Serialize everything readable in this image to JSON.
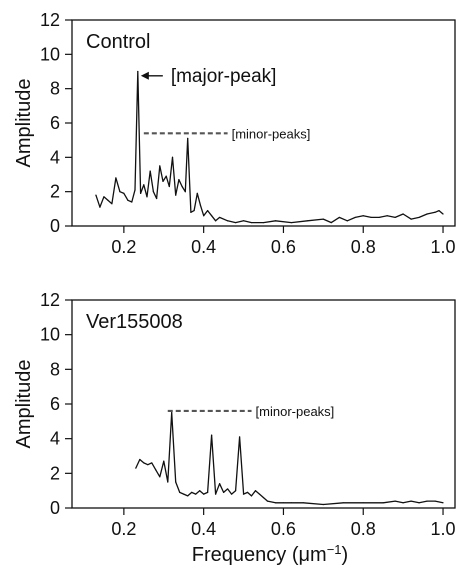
{
  "figure": {
    "xlabel": "Frequency (μm",
    "xlabel_sup": "−1",
    "xlabel_close": ")"
  },
  "chart_data": [
    {
      "type": "line",
      "title": "Control",
      "xlabel": "",
      "ylabel": "Amplitude",
      "xlim": [
        0.07,
        1.03
      ],
      "ylim": [
        0,
        12
      ],
      "x_ticks": [
        0.2,
        0.4,
        0.6,
        0.8,
        1.0
      ],
      "x_tick_labels": [
        "0.2",
        "0.4",
        "0.6",
        "0.8",
        "1.0"
      ],
      "y_ticks": [
        0,
        2,
        4,
        6,
        8,
        10,
        12
      ],
      "y_tick_labels": [
        "0",
        "2",
        "4",
        "6",
        "8",
        "10",
        "12"
      ],
      "series": [
        {
          "x": [
            0.13,
            0.14,
            0.15,
            0.16,
            0.17,
            0.18,
            0.19,
            0.2,
            0.21,
            0.22,
            0.228,
            0.235,
            0.242,
            0.25,
            0.258,
            0.266,
            0.274,
            0.282,
            0.29,
            0.298,
            0.306,
            0.314,
            0.322,
            0.33,
            0.338,
            0.346,
            0.354,
            0.36,
            0.368,
            0.376,
            0.384,
            0.392,
            0.4,
            0.41,
            0.42,
            0.43,
            0.44,
            0.46,
            0.48,
            0.5,
            0.52,
            0.55,
            0.58,
            0.62,
            0.66,
            0.7,
            0.72,
            0.74,
            0.76,
            0.78,
            0.8,
            0.82,
            0.84,
            0.86,
            0.88,
            0.9,
            0.92,
            0.94,
            0.96,
            0.98,
            0.99,
            1.0
          ],
          "y": [
            1.8,
            1.1,
            1.7,
            1.5,
            1.3,
            2.8,
            2.0,
            1.9,
            1.5,
            1.4,
            2.1,
            9.0,
            1.9,
            2.4,
            1.7,
            3.2,
            2.0,
            1.6,
            3.5,
            2.6,
            2.9,
            2.3,
            4.0,
            1.8,
            2.7,
            2.3,
            2.0,
            5.1,
            0.8,
            0.9,
            1.9,
            1.2,
            0.6,
            0.9,
            0.6,
            0.3,
            0.5,
            0.3,
            0.2,
            0.3,
            0.2,
            0.2,
            0.3,
            0.2,
            0.3,
            0.4,
            0.2,
            0.5,
            0.3,
            0.5,
            0.6,
            0.5,
            0.5,
            0.6,
            0.5,
            0.7,
            0.4,
            0.5,
            0.7,
            0.8,
            0.9,
            0.7
          ]
        }
      ],
      "annotations": {
        "major_peak": "[major-peak]",
        "minor_peaks": "[minor-peaks]",
        "major_arrow_x": 0.235,
        "major_arrow_y": 8.75,
        "minor_line_x": [
          0.25,
          0.46
        ],
        "minor_line_y": 5.4
      }
    },
    {
      "type": "line",
      "title": "Ver155008",
      "xlabel": "Frequency (μm−1)",
      "ylabel": "Amplitude",
      "xlim": [
        0.07,
        1.03
      ],
      "ylim": [
        0,
        12
      ],
      "x_ticks": [
        0.2,
        0.4,
        0.6,
        0.8,
        1.0
      ],
      "x_tick_labels": [
        "0.2",
        "0.4",
        "0.6",
        "0.8",
        "1.0"
      ],
      "y_ticks": [
        0,
        2,
        4,
        6,
        8,
        10,
        12
      ],
      "y_tick_labels": [
        "0",
        "2",
        "4",
        "6",
        "8",
        "10",
        "12"
      ],
      "series": [
        {
          "x": [
            0.23,
            0.24,
            0.25,
            0.26,
            0.27,
            0.28,
            0.29,
            0.3,
            0.31,
            0.32,
            0.33,
            0.34,
            0.35,
            0.36,
            0.37,
            0.38,
            0.39,
            0.4,
            0.41,
            0.42,
            0.43,
            0.44,
            0.45,
            0.46,
            0.47,
            0.48,
            0.49,
            0.5,
            0.51,
            0.52,
            0.53,
            0.54,
            0.55,
            0.56,
            0.58,
            0.6,
            0.62,
            0.65,
            0.7,
            0.75,
            0.8,
            0.85,
            0.88,
            0.9,
            0.92,
            0.94,
            0.96,
            0.98,
            1.0
          ],
          "y": [
            2.3,
            2.8,
            2.6,
            2.5,
            2.6,
            2.2,
            1.8,
            2.7,
            1.5,
            5.5,
            1.5,
            0.9,
            0.8,
            0.7,
            0.9,
            0.8,
            1.0,
            0.8,
            0.9,
            4.2,
            0.8,
            1.4,
            0.9,
            1.1,
            0.8,
            1.0,
            4.1,
            0.8,
            0.9,
            0.7,
            1.0,
            0.8,
            0.6,
            0.4,
            0.3,
            0.3,
            0.3,
            0.3,
            0.2,
            0.3,
            0.3,
            0.3,
            0.4,
            0.3,
            0.4,
            0.3,
            0.4,
            0.4,
            0.3
          ]
        }
      ],
      "annotations": {
        "minor_peaks": "[minor-peaks]",
        "minor_line_x": [
          0.31,
          0.52
        ],
        "minor_line_y": 5.6
      }
    }
  ]
}
